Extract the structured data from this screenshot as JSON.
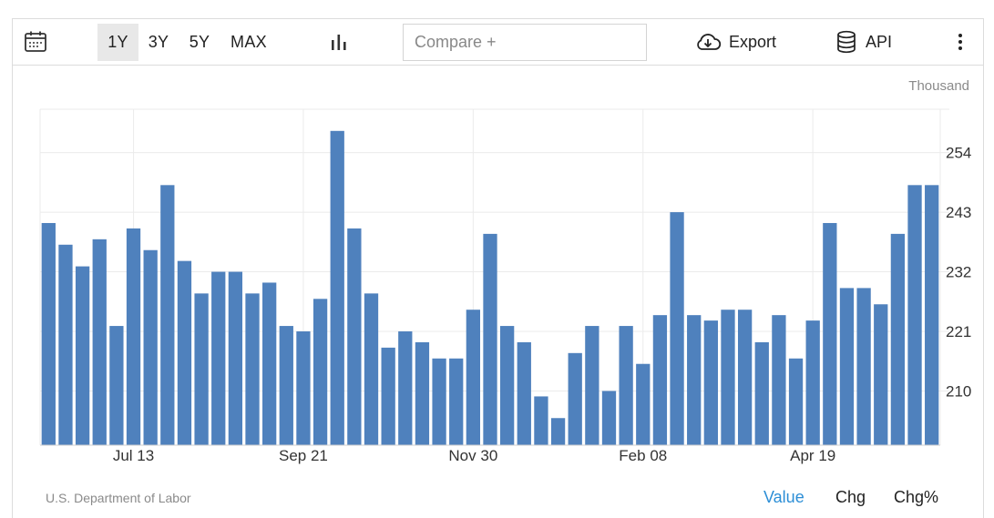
{
  "toolbar": {
    "calendar_icon": "calendar-icon",
    "ranges": [
      {
        "label": "1Y",
        "active": true
      },
      {
        "label": "3Y",
        "active": false
      },
      {
        "label": "5Y",
        "active": false
      },
      {
        "label": "MAX",
        "active": false
      }
    ],
    "chart_type_icon": "bar-chart-icon",
    "compare_placeholder": "Compare +",
    "export_label": "Export",
    "export_icon": "cloud-download-icon",
    "api_label": "API",
    "api_icon": "database-icon",
    "more_icon": "more-vertical-icon"
  },
  "unit_label": "Thousand",
  "source": "U.S. Department of Labor",
  "modes": [
    {
      "label": "Value",
      "active": true
    },
    {
      "label": "Chg",
      "active": false
    },
    {
      "label": "Chg%",
      "active": false
    }
  ],
  "colors": {
    "bar": "#4f81bd",
    "active_mode": "#2c8ed6",
    "grid": "#ebebeb"
  },
  "chart_data": {
    "type": "bar",
    "title": "",
    "xlabel": "",
    "ylabel": "",
    "ylim": [
      200,
      262
    ],
    "y_ticks": [
      210,
      221,
      232,
      243,
      254
    ],
    "y_axis_side": "right",
    "x_tick_labels": [
      "Jul 13",
      "Sep 21",
      "Nov 30",
      "Feb 08",
      "Apr 19"
    ],
    "x_tick_indices": [
      5,
      15,
      25,
      35,
      45
    ],
    "grid": true,
    "legend": "none",
    "series": [
      {
        "values": [
          241,
          237,
          233,
          238,
          222,
          240,
          236,
          248,
          234,
          228,
          232,
          232,
          228,
          230,
          222,
          221,
          227,
          258,
          240,
          228,
          218,
          221,
          219,
          216,
          216,
          225,
          239,
          222,
          219,
          209,
          205,
          217,
          222,
          210,
          222,
          215,
          224,
          243,
          224,
          223,
          225,
          225,
          219,
          224,
          216,
          223,
          241,
          229,
          229,
          226,
          239,
          248,
          248
        ]
      }
    ]
  }
}
